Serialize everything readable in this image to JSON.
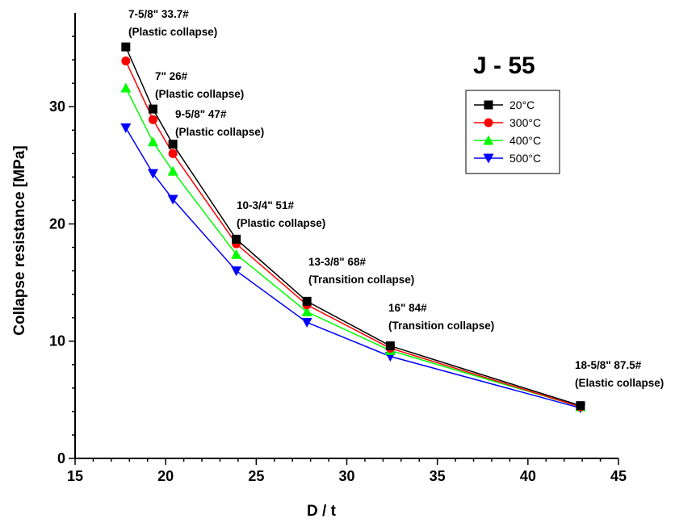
{
  "chart_data": {
    "type": "line",
    "title": "J - 55",
    "xlabel": "D / t",
    "ylabel": "Collapse resistance  [MPa]",
    "xlim": [
      15,
      45
    ],
    "ylim": [
      0,
      38
    ],
    "x_ticks": [
      15,
      20,
      25,
      30,
      35,
      40,
      45
    ],
    "y_ticks": [
      0,
      10,
      20,
      30
    ],
    "grid": false,
    "legend_position": "top-right",
    "x": [
      17.8,
      19.3,
      20.4,
      23.9,
      27.8,
      32.4,
      42.9
    ],
    "series": [
      {
        "name": "20°C",
        "color": "#000000",
        "marker": "square",
        "values": [
          35.1,
          29.8,
          26.8,
          18.7,
          13.4,
          9.6,
          4.5
        ]
      },
      {
        "name": "300°C",
        "color": "#ff0000",
        "marker": "circle",
        "values": [
          33.9,
          28.9,
          26.0,
          18.3,
          13.1,
          9.4,
          4.4
        ]
      },
      {
        "name": "400°C",
        "color": "#00ff00",
        "marker": "triangle-up",
        "values": [
          31.6,
          27.0,
          24.5,
          17.4,
          12.5,
          9.2,
          4.4
        ]
      },
      {
        "name": "500°C",
        "color": "#0000ff",
        "marker": "triangle-down",
        "values": [
          28.2,
          24.3,
          22.1,
          16.0,
          11.6,
          8.7,
          4.3
        ]
      }
    ],
    "annotations": [
      {
        "line1": "7-5/8\" 33.7#",
        "line2": "(Plastic collapse)"
      },
      {
        "line1": "7\" 26#",
        "line2": "(Plastic collapse)"
      },
      {
        "line1": "9-5/8\" 47#",
        "line2": "(Plastic collapse)"
      },
      {
        "line1": "10-3/4\" 51#",
        "line2": "(Plastic collapse)"
      },
      {
        "line1": "13-3/8\" 68#",
        "line2": "(Transition collapse)"
      },
      {
        "line1": "16\" 84#",
        "line2": "(Transition collapse)"
      },
      {
        "line1": "18-5/8\" 87.5#",
        "line2": "(Elastic collapse)"
      }
    ]
  }
}
